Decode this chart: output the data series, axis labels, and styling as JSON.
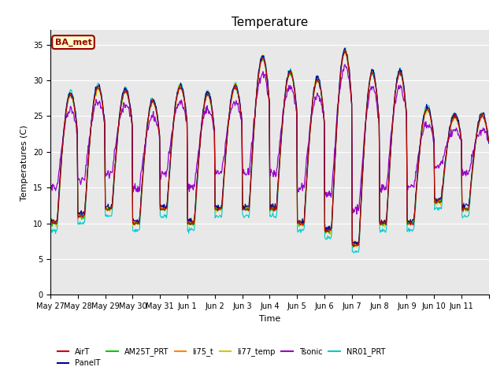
{
  "title": "Temperature",
  "ylabel": "Temperatures (C)",
  "xlabel": "Time",
  "ylim": [
    0,
    37
  ],
  "yticks": [
    0,
    5,
    10,
    15,
    20,
    25,
    30,
    35
  ],
  "date_labels": [
    "May 27",
    "May 28",
    "May 29",
    "May 30",
    "May 31",
    "Jun 1",
    "Jun 2",
    "Jun 3",
    "Jun 4",
    "Jun 5",
    "Jun 6",
    "Jun 7",
    "Jun 8",
    "Jun 9",
    "Jun 10",
    "Jun 11"
  ],
  "series_colors": {
    "AirT": "#cc0000",
    "PanelT": "#000099",
    "AM25T_PRT": "#00cc00",
    "li75_t": "#ff8800",
    "li77_temp": "#cccc00",
    "Tsonic": "#9900cc",
    "NR01_PRT": "#00cccc"
  },
  "background_color": "#e8e8e8",
  "box_facecolor": "#ffffcc",
  "box_edgecolor": "#990000",
  "box_label": "BA_met",
  "title_fontsize": 11,
  "label_fontsize": 8,
  "tick_fontsize": 7
}
